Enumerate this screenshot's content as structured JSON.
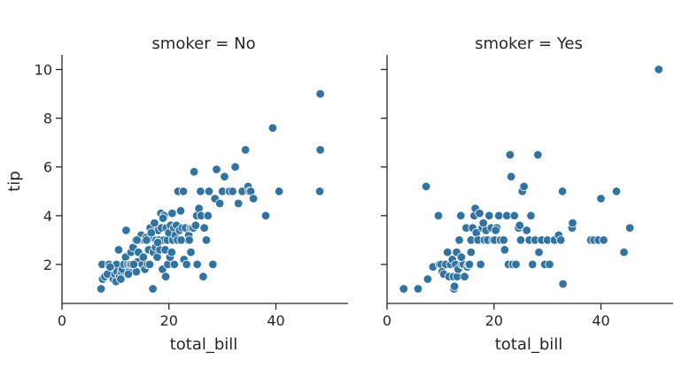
{
  "chart_data": [
    {
      "type": "scatter",
      "title": "smoker = No",
      "xlabel": "total_bill",
      "ylabel": "tip",
      "xlim": [
        0,
        53.5
      ],
      "ylim": [
        0.4,
        10.6
      ],
      "xticks": [
        0,
        20,
        40
      ],
      "yticks": [
        2,
        4,
        6,
        8,
        10
      ],
      "grid": false,
      "color": "#3274a1",
      "points": [
        [
          7.3,
          1.0
        ],
        [
          7.5,
          2.0
        ],
        [
          7.6,
          1.4
        ],
        [
          8.0,
          1.5
        ],
        [
          8.5,
          1.6
        ],
        [
          8.8,
          2.0
        ],
        [
          9.6,
          1.4
        ],
        [
          9.9,
          1.6
        ],
        [
          10.1,
          1.3
        ],
        [
          10.2,
          2.0
        ],
        [
          10.3,
          1.7
        ],
        [
          10.6,
          2.6
        ],
        [
          10.8,
          1.5
        ],
        [
          11.1,
          1.7
        ],
        [
          11.3,
          1.8
        ],
        [
          11.6,
          2.0
        ],
        [
          11.9,
          2.3
        ],
        [
          12.0,
          3.4
        ],
        [
          12.3,
          2.0
        ],
        [
          12.5,
          1.7
        ],
        [
          12.7,
          2.0
        ],
        [
          12.9,
          2.5
        ],
        [
          13.0,
          2.0
        ],
        [
          13.3,
          2.7
        ],
        [
          13.5,
          2.0
        ],
        [
          13.8,
          3.0
        ],
        [
          13.9,
          1.7
        ],
        [
          14.1,
          2.1
        ],
        [
          14.3,
          2.5
        ],
        [
          14.5,
          3.0
        ],
        [
          14.8,
          3.2
        ],
        [
          15.0,
          2.0
        ],
        [
          15.2,
          2.3
        ],
        [
          15.4,
          3.0
        ],
        [
          15.5,
          1.8
        ],
        [
          15.7,
          3.1
        ],
        [
          16.0,
          2.0
        ],
        [
          16.2,
          2.6
        ],
        [
          16.4,
          2.0
        ],
        [
          16.5,
          3.5
        ],
        [
          16.8,
          3.1
        ],
        [
          17.0,
          1.0
        ],
        [
          17.1,
          2.5
        ],
        [
          17.3,
          3.7
        ],
        [
          17.5,
          2.7
        ],
        [
          17.6,
          3.0
        ],
        [
          17.8,
          2.3
        ],
        [
          18.0,
          3.4
        ],
        [
          18.2,
          3.0
        ],
        [
          18.3,
          2.6
        ],
        [
          18.5,
          4.1
        ],
        [
          18.6,
          3.5
        ],
        [
          18.8,
          1.8
        ],
        [
          19.0,
          3.0
        ],
        [
          19.1,
          4.0
        ],
        [
          19.3,
          2.6
        ],
        [
          19.4,
          1.5
        ],
        [
          19.5,
          3.5
        ],
        [
          19.7,
          3.0
        ],
        [
          19.8,
          2.0
        ],
        [
          20.0,
          3.3
        ],
        [
          20.2,
          2.3
        ],
        [
          20.3,
          3.6
        ],
        [
          20.5,
          2.5
        ],
        [
          20.7,
          3.0
        ],
        [
          20.9,
          3.5
        ],
        [
          21.0,
          2.0
        ],
        [
          21.2,
          3.2
        ],
        [
          21.4,
          3.6
        ],
        [
          21.6,
          3.0
        ],
        [
          21.7,
          5.0
        ],
        [
          22.0,
          3.4
        ],
        [
          22.2,
          4.2
        ],
        [
          22.5,
          3.5
        ],
        [
          22.7,
          5.0
        ],
        [
          22.8,
          2.2
        ],
        [
          23.1,
          3.5
        ],
        [
          23.3,
          2.0
        ],
        [
          23.5,
          3.0
        ],
        [
          23.7,
          3.2
        ],
        [
          24.0,
          3.5
        ],
        [
          24.1,
          2.5
        ],
        [
          24.3,
          3.5
        ],
        [
          24.6,
          3.5
        ],
        [
          24.7,
          5.8
        ],
        [
          25.0,
          3.6
        ],
        [
          25.2,
          4.0
        ],
        [
          25.3,
          2.0
        ],
        [
          25.6,
          4.3
        ],
        [
          25.9,
          5.0
        ],
        [
          26.0,
          4.0
        ],
        [
          26.4,
          1.5
        ],
        [
          26.6,
          3.5
        ],
        [
          27.0,
          3.0
        ],
        [
          27.3,
          4.0
        ],
        [
          27.5,
          5.0
        ],
        [
          28.2,
          2.0
        ],
        [
          28.6,
          4.7
        ],
        [
          28.9,
          5.9
        ],
        [
          29.5,
          4.5
        ],
        [
          30.0,
          5.0
        ],
        [
          30.4,
          5.6
        ],
        [
          31.3,
          5.0
        ],
        [
          31.9,
          5.0
        ],
        [
          32.4,
          6.0
        ],
        [
          33.0,
          4.5
        ],
        [
          33.7,
          5.0
        ],
        [
          34.3,
          6.7
        ],
        [
          34.8,
          5.2
        ],
        [
          35.0,
          5.0
        ],
        [
          35.3,
          5.0
        ],
        [
          35.8,
          4.7
        ],
        [
          38.1,
          4.0
        ],
        [
          39.4,
          7.6
        ],
        [
          40.6,
          5.0
        ],
        [
          48.3,
          9.0
        ],
        [
          48.3,
          6.7
        ],
        [
          48.2,
          5.0
        ],
        [
          9.0,
          1.9
        ],
        [
          11.0,
          1.4
        ],
        [
          12.4,
          1.6
        ],
        [
          13.4,
          2.0
        ],
        [
          14.0,
          3.0
        ],
        [
          15.8,
          3.0
        ],
        [
          16.7,
          3.3
        ],
        [
          18.9,
          3.9
        ],
        [
          20.6,
          4.1
        ],
        [
          22.3,
          3.0
        ],
        [
          23.8,
          3.0
        ],
        [
          17.9,
          2.9
        ]
      ]
    },
    {
      "type": "scatter",
      "title": "smoker = Yes",
      "xlabel": "total_bill",
      "ylabel": "",
      "xlim": [
        0,
        53.5
      ],
      "ylim": [
        0.4,
        10.6
      ],
      "xticks": [
        0,
        20,
        40
      ],
      "yticks": [
        2,
        4,
        6,
        8,
        10
      ],
      "grid": false,
      "color": "#3274a1",
      "points": [
        [
          3.1,
          1.0
        ],
        [
          5.8,
          1.0
        ],
        [
          7.3,
          5.2
        ],
        [
          7.6,
          1.4
        ],
        [
          8.6,
          1.9
        ],
        [
          9.6,
          4.0
        ],
        [
          9.8,
          2.0
        ],
        [
          10.1,
          2.0
        ],
        [
          10.3,
          1.7
        ],
        [
          10.6,
          1.6
        ],
        [
          11.0,
          2.0
        ],
        [
          11.3,
          2.5
        ],
        [
          11.6,
          1.5
        ],
        [
          11.9,
          2.0
        ],
        [
          12.2,
          2.2
        ],
        [
          12.4,
          1.5
        ],
        [
          12.5,
          1.0
        ],
        [
          12.6,
          1.1
        ],
        [
          12.8,
          2.0
        ],
        [
          13.0,
          2.5
        ],
        [
          13.1,
          1.5
        ],
        [
          13.3,
          1.8
        ],
        [
          13.5,
          3.0
        ],
        [
          13.8,
          4.0
        ],
        [
          14.0,
          2.0
        ],
        [
          14.3,
          2.0
        ],
        [
          14.5,
          1.5
        ],
        [
          14.8,
          3.5
        ],
        [
          15.0,
          1.9
        ],
        [
          15.2,
          2.0
        ],
        [
          15.4,
          2.0
        ],
        [
          15.7,
          3.0
        ],
        [
          16.0,
          3.5
        ],
        [
          16.3,
          4.0
        ],
        [
          16.5,
          4.3
        ],
        [
          16.7,
          3.3
        ],
        [
          17.0,
          3.0
        ],
        [
          17.3,
          4.1
        ],
        [
          17.5,
          2.0
        ],
        [
          17.8,
          3.5
        ],
        [
          18.2,
          3.0
        ],
        [
          18.5,
          3.4
        ],
        [
          18.8,
          3.0
        ],
        [
          19.1,
          4.0
        ],
        [
          19.5,
          3.5
        ],
        [
          19.8,
          3.0
        ],
        [
          20.1,
          3.0
        ],
        [
          20.5,
          3.5
        ],
        [
          20.9,
          4.0
        ],
        [
          21.2,
          3.0
        ],
        [
          21.8,
          3.0
        ],
        [
          22.0,
          2.6
        ],
        [
          22.4,
          4.0
        ],
        [
          22.7,
          2.0
        ],
        [
          23.0,
          6.5
        ],
        [
          23.2,
          5.6
        ],
        [
          23.5,
          2.0
        ],
        [
          23.8,
          4.0
        ],
        [
          24.1,
          2.0
        ],
        [
          24.6,
          3.5
        ],
        [
          24.8,
          3.6
        ],
        [
          25.0,
          3.0
        ],
        [
          25.3,
          5.0
        ],
        [
          25.6,
          5.2
        ],
        [
          26.1,
          3.4
        ],
        [
          26.6,
          3.0
        ],
        [
          26.9,
          4.0
        ],
        [
          27.2,
          2.0
        ],
        [
          27.7,
          3.0
        ],
        [
          28.2,
          6.5
        ],
        [
          28.4,
          2.5
        ],
        [
          28.9,
          3.0
        ],
        [
          29.5,
          2.0
        ],
        [
          30.0,
          3.0
        ],
        [
          30.4,
          2.0
        ],
        [
          31.3,
          3.0
        ],
        [
          32.1,
          3.2
        ],
        [
          32.5,
          3.0
        ],
        [
          32.8,
          5.0
        ],
        [
          32.9,
          1.2
        ],
        [
          34.6,
          3.5
        ],
        [
          34.7,
          3.7
        ],
        [
          38.1,
          3.0
        ],
        [
          38.7,
          3.0
        ],
        [
          39.5,
          3.0
        ],
        [
          40.0,
          4.7
        ],
        [
          40.5,
          3.0
        ],
        [
          42.9,
          5.0
        ],
        [
          44.3,
          2.5
        ],
        [
          45.4,
          3.5
        ],
        [
          50.8,
          10.0
        ],
        [
          15.7,
          2.5
        ],
        [
          18.0,
          3.7
        ],
        [
          20.3,
          3.4
        ],
        [
          13.9,
          2.3
        ]
      ]
    }
  ]
}
